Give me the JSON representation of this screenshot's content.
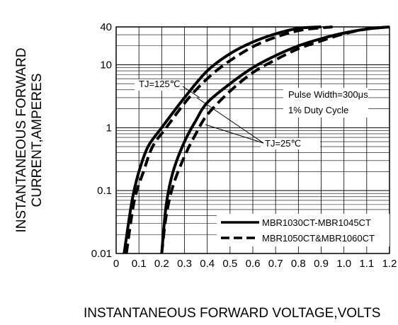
{
  "chart_data": {
    "type": "line",
    "title": "",
    "xlabel": "INSTANTANEOUS FORWARD VOLTAGE,VOLTS",
    "ylabel_lines": [
      "INSTANTANEOUS FORWARD",
      "CURRENT,AMPERES"
    ],
    "x_scale": "linear",
    "y_scale": "log",
    "xlim": [
      0,
      1.2
    ],
    "ylim": [
      0.01,
      40
    ],
    "grid": true,
    "x_ticks": [
      {
        "value": 0,
        "label": "0"
      },
      {
        "value": 0.1,
        "label": "0.1"
      },
      {
        "value": 0.2,
        "label": "0.2"
      },
      {
        "value": 0.3,
        "label": "0.3"
      },
      {
        "value": 0.4,
        "label": "0.4"
      },
      {
        "value": 0.5,
        "label": "0.5"
      },
      {
        "value": 0.6,
        "label": "0.6"
      },
      {
        "value": 0.7,
        "label": "0.7"
      },
      {
        "value": 0.8,
        "label": "0.8"
      },
      {
        "value": 0.9,
        "label": "0.9"
      },
      {
        "value": 1.0,
        "label": "1.0"
      },
      {
        "value": 1.1,
        "label": "1.1"
      },
      {
        "value": 1.2,
        "label": "1.2"
      }
    ],
    "y_ticks": [
      {
        "value": 0.01,
        "label": "0.01"
      },
      {
        "value": 0.1,
        "label": "0.1"
      },
      {
        "value": 1,
        "label": "1"
      },
      {
        "value": 10,
        "label": "10"
      },
      {
        "value": 40,
        "label": "40"
      }
    ],
    "series": [
      {
        "name": "MBR1030CT-MBR1045CT",
        "condition": "TJ=125℃",
        "style": "solid",
        "x": [
          0.035,
          0.07,
          0.1,
          0.14,
          0.2,
          0.3,
          0.4,
          0.5,
          0.6,
          0.7,
          0.8,
          0.9
        ],
        "y": [
          0.01,
          0.07,
          0.2,
          0.5,
          1.0,
          3.0,
          8.0,
          15,
          23,
          31,
          38,
          40
        ]
      },
      {
        "name": "MBR1050CT&MBR1060CT",
        "condition": "TJ=125℃",
        "style": "dashed",
        "x": [
          0.045,
          0.08,
          0.12,
          0.16,
          0.22,
          0.32,
          0.42,
          0.52,
          0.62,
          0.72,
          0.82,
          0.95
        ],
        "y": [
          0.01,
          0.07,
          0.2,
          0.5,
          1.0,
          3.0,
          7.0,
          13,
          21,
          29,
          36,
          40
        ]
      },
      {
        "name": "MBR1030CT-MBR1045CT",
        "condition": "TJ=25℃",
        "style": "solid",
        "x": [
          0.2,
          0.22,
          0.25,
          0.3,
          0.35,
          0.4,
          0.5,
          0.6,
          0.7,
          0.8,
          0.9,
          1.0,
          1.1,
          1.2
        ],
        "y": [
          0.01,
          0.06,
          0.2,
          0.6,
          1.3,
          2.5,
          5.0,
          9.0,
          14,
          20,
          26,
          32,
          37,
          40
        ]
      },
      {
        "name": "MBR1050CT&MBR1060CT",
        "condition": "TJ=25℃",
        "style": "dashed",
        "x": [
          0.2,
          0.22,
          0.25,
          0.3,
          0.35,
          0.4,
          0.5,
          0.6,
          0.7,
          0.8,
          0.9,
          1.0,
          1.1,
          1.2
        ],
        "y": [
          0.01,
          0.04,
          0.12,
          0.35,
          0.8,
          1.6,
          3.8,
          7.5,
          12,
          18,
          24,
          31,
          37,
          40
        ]
      }
    ],
    "annotations": {
      "tj_high": "TJ=125℃",
      "tj_low": "TJ=25℃",
      "pulse": "Pulse Width=300μs",
      "duty": "1% Duty Cycle"
    },
    "legend": {
      "placement": "bottom-right",
      "entries": [
        {
          "label": "MBR1030CT-MBR1045CT",
          "style": "solid"
        },
        {
          "label": "MBR1050CT&MBR1060CT",
          "style": "dashed"
        }
      ]
    }
  }
}
